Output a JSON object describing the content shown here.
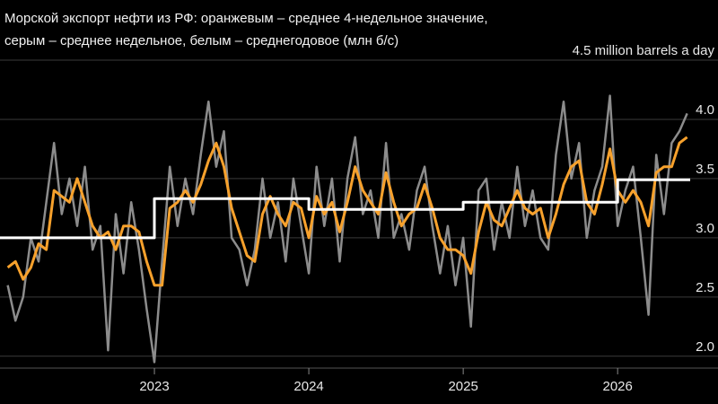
{
  "chart_data": {
    "type": "line",
    "title": [
      "Морской экспорт нефти из РФ: оранжевым – среднее 4-недельное значение,",
      "серым – среднее недельное, белым – среднегодовое (млн б/с)"
    ],
    "x": [
      2022.05,
      2022.1,
      2022.15,
      2022.2,
      2022.25,
      2022.3,
      2022.35,
      2022.4,
      2022.45,
      2022.5,
      2022.55,
      2022.6,
      2022.65,
      2022.7,
      2022.75,
      2022.8,
      2022.85,
      2022.9,
      2022.95,
      2023.0,
      2023.05,
      2023.1,
      2023.15,
      2023.2,
      2023.25,
      2023.3,
      2023.35,
      2023.4,
      2023.45,
      2023.5,
      2023.55,
      2023.6,
      2023.65,
      2023.7,
      2023.75,
      2023.8,
      2023.85,
      2023.9,
      2023.95,
      2024.0,
      2024.05,
      2024.1,
      2024.15,
      2024.2,
      2024.25,
      2024.3,
      2024.35,
      2024.4,
      2024.45,
      2024.5,
      2024.55,
      2024.6,
      2024.65,
      2024.7,
      2024.75,
      2024.8,
      2024.85,
      2024.9,
      2024.95,
      2025.0,
      2025.05,
      2025.1,
      2025.15,
      2025.2,
      2025.25,
      2025.3,
      2025.35,
      2025.4,
      2025.45,
      2025.5,
      2025.55,
      2025.6,
      2025.65,
      2025.7,
      2025.75,
      2025.8,
      2025.85,
      2025.9,
      2025.95,
      2026.0,
      2026.05,
      2026.1,
      2026.15,
      2026.2,
      2026.25,
      2026.3,
      2026.35,
      2026.4,
      2026.45
    ],
    "series": [
      {
        "color": "#8c8c8c",
        "values": [
          2.6,
          2.3,
          2.5,
          3.0,
          2.8,
          3.3,
          3.8,
          3.2,
          3.5,
          3.1,
          3.6,
          2.9,
          3.1,
          2.05,
          3.2,
          2.7,
          3.3,
          2.9,
          2.4,
          1.95,
          2.8,
          3.6,
          3.1,
          3.5,
          3.2,
          3.7,
          4.15,
          3.6,
          3.9,
          3.0,
          2.9,
          2.6,
          2.9,
          3.5,
          3.0,
          3.3,
          2.8,
          3.5,
          3.1,
          2.7,
          3.6,
          3.1,
          3.5,
          2.8,
          3.5,
          3.85,
          3.2,
          3.4,
          3.0,
          3.8,
          3.0,
          3.2,
          2.9,
          3.4,
          3.6,
          3.1,
          2.7,
          3.1,
          2.6,
          3.0,
          2.25,
          3.4,
          3.5,
          2.9,
          3.3,
          3.0,
          3.6,
          3.1,
          3.4,
          3.0,
          2.9,
          3.7,
          4.15,
          3.5,
          3.8,
          3.0,
          3.4,
          3.6,
          4.2,
          3.1,
          3.4,
          3.6,
          3.0,
          2.35,
          3.7,
          3.2,
          3.8,
          3.9,
          4.05
        ]
      },
      {
        "color": "#f7a12c",
        "values": [
          2.75,
          2.8,
          2.65,
          2.75,
          2.95,
          2.9,
          3.4,
          3.35,
          3.3,
          3.5,
          3.3,
          3.1,
          3.0,
          3.05,
          2.9,
          3.1,
          3.1,
          3.05,
          2.8,
          2.6,
          2.6,
          3.25,
          3.3,
          3.4,
          3.3,
          3.45,
          3.65,
          3.8,
          3.6,
          3.25,
          3.05,
          2.85,
          2.8,
          3.2,
          3.35,
          3.2,
          3.1,
          3.3,
          3.25,
          3.0,
          3.35,
          3.2,
          3.3,
          3.05,
          3.3,
          3.6,
          3.4,
          3.3,
          3.2,
          3.55,
          3.3,
          3.1,
          3.2,
          3.25,
          3.45,
          3.25,
          3.0,
          2.9,
          2.9,
          2.85,
          2.7,
          3.05,
          3.3,
          3.15,
          3.1,
          3.25,
          3.4,
          3.25,
          3.2,
          3.25,
          3.0,
          3.2,
          3.45,
          3.6,
          3.65,
          3.3,
          3.2,
          3.45,
          3.75,
          3.4,
          3.3,
          3.4,
          3.3,
          3.1,
          3.55,
          3.6,
          3.6,
          3.8,
          3.85
        ]
      },
      {
        "color": "#ffffff",
        "x": [
          2022.0,
          2023.0,
          2023.0,
          2024.0,
          2024.0,
          2025.0,
          2025.0,
          2026.0,
          2026.0,
          2026.47
        ],
        "values": [
          3.0,
          3.0,
          3.33,
          3.33,
          3.24,
          3.24,
          3.3,
          3.3,
          3.49,
          3.49
        ]
      }
    ],
    "xlim": [
      2022.0,
      2026.65
    ],
    "xticks": [
      2023,
      2024,
      2025,
      2026
    ],
    "ylim": [
      1.9,
      4.5
    ],
    "yticks": [
      {
        "value": 2,
        "label": "2.0"
      },
      2.5,
      {
        "value": 3,
        "label": "3.0"
      },
      3.5,
      {
        "value": 4,
        "label": "4.0"
      },
      {
        "value": 4.5,
        "label": "4.5 million barrels a day"
      }
    ],
    "grid": true
  }
}
